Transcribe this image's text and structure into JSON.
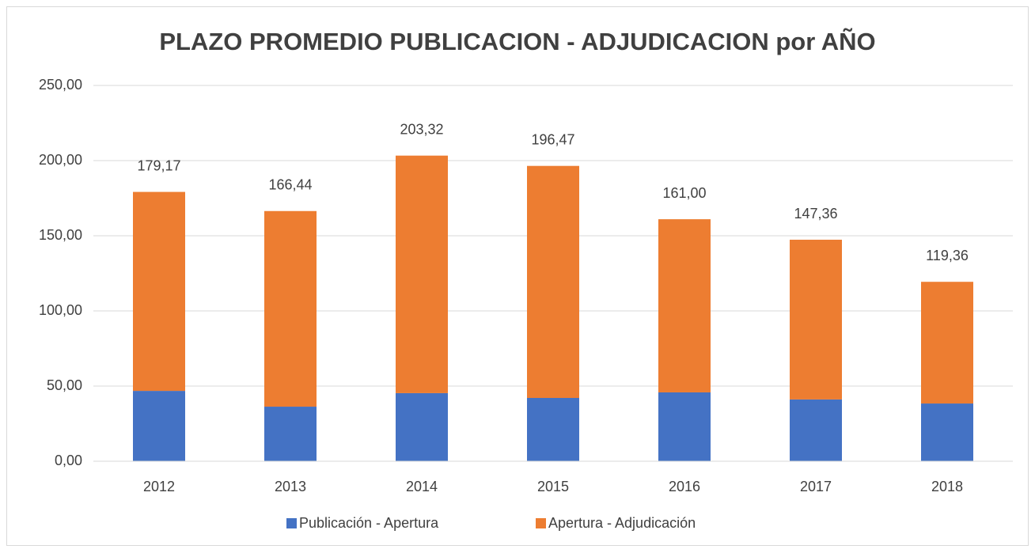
{
  "chart_data": {
    "type": "stacked_bar",
    "title": "PLAZO PROMEDIO PUBLICACION - ADJUDICACION por AÑO",
    "categories": [
      "2012",
      "2013",
      "2014",
      "2015",
      "2016",
      "2017",
      "2018"
    ],
    "series": [
      {
        "name": "Publicación - Apertura",
        "color": "#4472c4",
        "values": [
          46.8,
          36.3,
          45.3,
          42.1,
          45.8,
          41.1,
          38.4
        ]
      },
      {
        "name": "Apertura - Adjudicación",
        "color": "#ed7d31",
        "values": [
          132.37,
          130.14,
          158.02,
          154.37,
          115.2,
          106.26,
          80.96
        ]
      }
    ],
    "totals": [
      179.17,
      166.44,
      203.32,
      196.47,
      161.0,
      147.36,
      119.36
    ],
    "total_labels": [
      "179,17",
      "166,44",
      "203,32",
      "196,47",
      "161,00",
      "147,36",
      "119,36"
    ],
    "ylim": [
      0,
      250
    ],
    "yticks": [
      {
        "value": 0,
        "label": "0,00"
      },
      {
        "value": 50,
        "label": "50,00"
      },
      {
        "value": 100,
        "label": "100,00"
      },
      {
        "value": 150,
        "label": "150,00"
      },
      {
        "value": 200,
        "label": "200,00"
      },
      {
        "value": 250,
        "label": "250,00"
      }
    ],
    "grid": true,
    "legend": "bottom"
  }
}
